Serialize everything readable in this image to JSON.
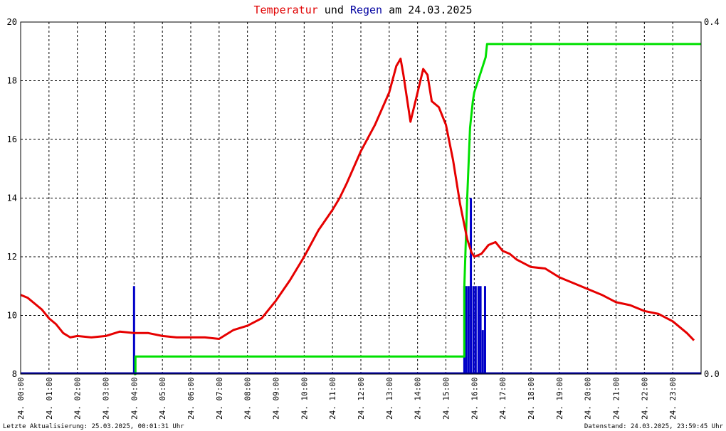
{
  "chart_data": {
    "type": "line",
    "title_parts": [
      {
        "text": "Temperatur",
        "color": "#e00000"
      },
      {
        "text": " und ",
        "color": "#000000"
      },
      {
        "text": "Regen",
        "color": "#0000a0"
      },
      {
        "text": " am 24.03.2025",
        "color": "#000000"
      }
    ],
    "x_tick_labels": [
      "24. 00:00",
      "24. 01:00",
      "24. 02:00",
      "24. 03:00",
      "24. 04:00",
      "24. 05:00",
      "24. 06:00",
      "24. 07:00",
      "24. 08:00",
      "24. 09:00",
      "24. 10:00",
      "24. 11:00",
      "24. 12:00",
      "24. 13:00",
      "24. 14:00",
      "24. 15:00",
      "24. 16:00",
      "24. 17:00",
      "24. 18:00",
      "24. 19:00",
      "24. 20:00",
      "24. 21:00",
      "24. 22:00",
      "24. 23:00"
    ],
    "x_range_hours": [
      0,
      24
    ],
    "y_left": {
      "range": [
        8,
        20
      ],
      "ticks": [
        "8",
        "10",
        "12",
        "14",
        "16",
        "18",
        "20"
      ]
    },
    "y_right": {
      "range": [
        0,
        0.4
      ],
      "ticks": [
        "0.0",
        "0.4"
      ]
    },
    "grid": true,
    "series": [
      {
        "color": "#e60000",
        "axis": "left",
        "x_hours": [
          0,
          0.25,
          0.5,
          0.75,
          1.0,
          1.25,
          1.5,
          1.75,
          2.0,
          2.5,
          3.0,
          3.5,
          4.0,
          4.5,
          5.0,
          5.5,
          6.0,
          6.5,
          7.0,
          7.5,
          8.0,
          8.5,
          9.0,
          9.5,
          10.0,
          10.5,
          11.0,
          11.25,
          11.5,
          12.0,
          12.5,
          13.0,
          13.25,
          13.4,
          13.5,
          13.75,
          14.0,
          14.2,
          14.35,
          14.5,
          14.75,
          15.0,
          15.25,
          15.5,
          15.75,
          15.9,
          16.0,
          16.25,
          16.5,
          16.75,
          17.0,
          17.25,
          17.5,
          18.0,
          18.5,
          19.0,
          19.5,
          20.0,
          20.5,
          21.0,
          21.5,
          22.0,
          22.5,
          23.0,
          23.5,
          23.75
        ],
        "values": [
          10.7,
          10.6,
          10.4,
          10.2,
          9.9,
          9.7,
          9.4,
          9.25,
          9.3,
          9.25,
          9.3,
          9.45,
          9.4,
          9.4,
          9.3,
          9.25,
          9.25,
          9.25,
          9.2,
          9.5,
          9.65,
          9.9,
          10.5,
          11.2,
          12.0,
          12.9,
          13.6,
          14.0,
          14.5,
          15.6,
          16.5,
          17.6,
          18.5,
          18.75,
          18.2,
          16.6,
          17.6,
          18.4,
          18.2,
          17.3,
          17.1,
          16.5,
          15.3,
          13.8,
          12.6,
          12.15,
          12.0,
          12.1,
          12.4,
          12.5,
          12.2,
          12.1,
          11.9,
          11.65,
          11.6,
          11.3,
          11.1,
          10.9,
          10.7,
          10.45,
          10.35,
          10.15,
          10.05,
          9.8,
          9.4,
          9.15
        ]
      },
      {
        "color": "#00e000",
        "axis": "right",
        "x_hours": [
          4.0,
          4.05,
          4.05,
          15.65,
          15.65,
          15.75,
          15.85,
          15.95,
          16.0,
          16.1,
          16.2,
          16.3,
          16.4,
          16.45,
          16.5,
          24.0
        ],
        "values": [
          0.0,
          0.0,
          0.02,
          0.02,
          0.1,
          0.2,
          0.28,
          0.31,
          0.32,
          0.33,
          0.34,
          0.35,
          0.36,
          0.375,
          0.375,
          0.375
        ]
      }
    ],
    "rain_bars": {
      "color": "#0000c8",
      "axis": "right",
      "x_hours": [
        4.0,
        15.65,
        15.72,
        15.8,
        15.88,
        15.97,
        16.05,
        16.15,
        16.22,
        16.3,
        16.38
      ],
      "values": [
        0.1,
        0.1,
        0.1,
        0.1,
        0.2,
        0.1,
        0.1,
        0.1,
        0.1,
        0.05,
        0.1
      ]
    },
    "footer_left": "Letzte Aktualisierung: 25.03.2025, 00:01:31 Uhr",
    "footer_right": "Datenstand: 24.03.2025, 23:59:45 Uhr"
  }
}
